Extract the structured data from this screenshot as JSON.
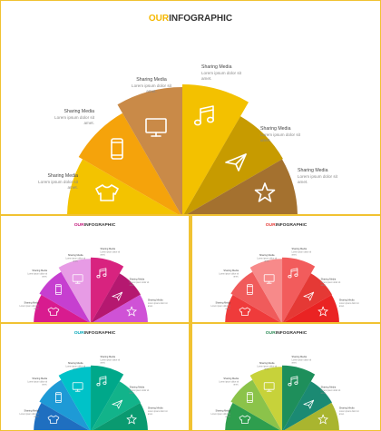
{
  "title_prefix": "OUR",
  "title_main": "INFOGRAPHIC",
  "label_title": "Sharing Media",
  "label_line1": "Lorem ipsum dolor sit",
  "label_line2": "amet.",
  "icons": [
    "tshirt-icon",
    "smartphone-icon",
    "monitor-icon",
    "music-note-icon",
    "paper-plane-icon",
    "star-icon"
  ],
  "colors": {
    "frame": "#f1c232",
    "title_main": "#333333",
    "label": "#444444",
    "sublabel": "#888888"
  },
  "slides": [
    {
      "name": "slide-main",
      "accent": "#f5b800",
      "wedges": [
        "#f3c300",
        "#f5a30b",
        "#c98a48",
        "#f3c100",
        "#c79b00",
        "#a4712f"
      ]
    },
    {
      "name": "slide-magenta",
      "accent": "#c2187b",
      "wedges": [
        "#d81b8f",
        "#c63fd0",
        "#e79be5",
        "#d8237f",
        "#b51870",
        "#cf52d6"
      ]
    },
    {
      "name": "slide-red",
      "accent": "#e53935",
      "wedges": [
        "#ef3b3b",
        "#f05b5b",
        "#f78a8a",
        "#f25c5c",
        "#e53935",
        "#ea2323"
      ]
    },
    {
      "name": "slide-teal",
      "accent": "#00a6b8",
      "wedges": [
        "#1f6fc0",
        "#1e9ad6",
        "#00c2c8",
        "#00a88a",
        "#12b38a",
        "#0a9a70"
      ]
    },
    {
      "name": "slide-green",
      "accent": "#2e8b57",
      "wedges": [
        "#2e9e4e",
        "#8bc34a",
        "#c7d23a",
        "#1e8f5b",
        "#1b8a73",
        "#a9b52f"
      ]
    }
  ]
}
